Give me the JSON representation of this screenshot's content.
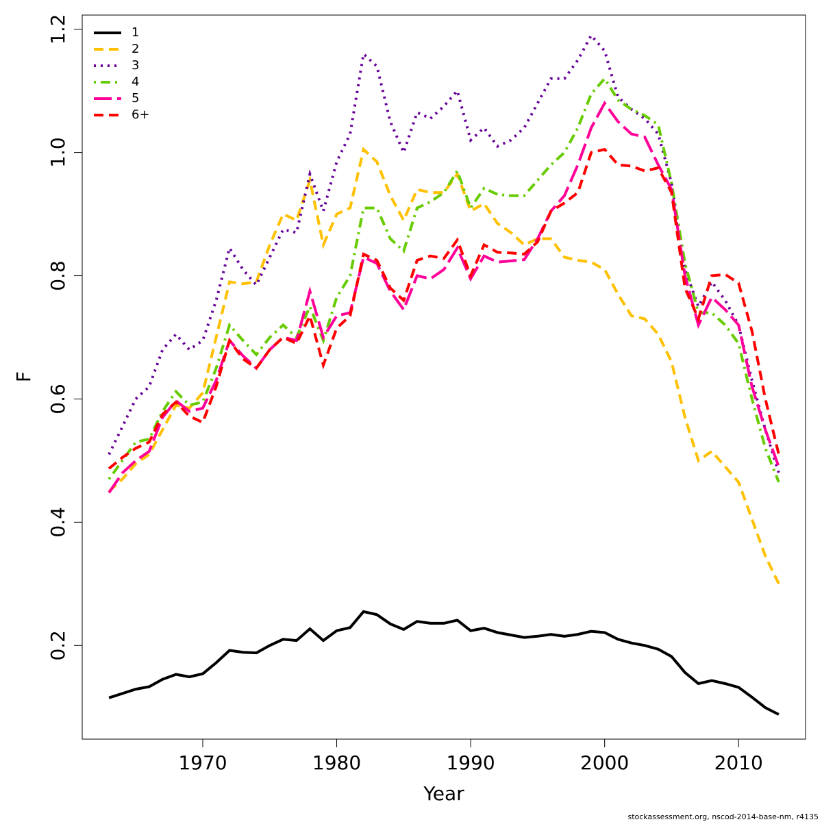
{
  "chart_data": {
    "type": "line",
    "x_label": "Year",
    "y_label": "F",
    "footnote": "stockassessment.org, nscod-2014-base-nm, r4135",
    "x": [
      1963,
      1964,
      1965,
      1966,
      1967,
      1968,
      1969,
      1970,
      1971,
      1972,
      1973,
      1974,
      1975,
      1976,
      1977,
      1978,
      1979,
      1980,
      1981,
      1982,
      1983,
      1984,
      1985,
      1986,
      1987,
      1988,
      1989,
      1990,
      1991,
      1992,
      1993,
      1994,
      1995,
      1996,
      1997,
      1998,
      1999,
      2000,
      2001,
      2002,
      2003,
      2004,
      2005,
      2006,
      2007,
      2008,
      2009,
      2010,
      2011,
      2012,
      2013
    ],
    "xlim": [
      1961,
      2015
    ],
    "xticks": [
      1970,
      1980,
      1990,
      2000,
      2010
    ],
    "ylim": [
      0.048,
      1.223
    ],
    "yticks": [
      0.2,
      0.4,
      0.6,
      0.8,
      {
        "value": 1,
        "label": "1.0"
      },
      1.2
    ],
    "legend": "top-left",
    "series": [
      {
        "name": "1",
        "color": "#000000",
        "linestyle": "solid",
        "values": [
          0.115,
          0.122,
          0.129,
          0.133,
          0.145,
          0.153,
          0.149,
          0.154,
          0.172,
          0.192,
          0.189,
          0.188,
          0.2,
          0.21,
          0.208,
          0.227,
          0.208,
          0.224,
          0.229,
          0.255,
          0.25,
          0.235,
          0.226,
          0.239,
          0.236,
          0.236,
          0.241,
          0.224,
          0.228,
          0.221,
          0.217,
          0.213,
          0.215,
          0.218,
          0.215,
          0.218,
          0.223,
          0.221,
          0.21,
          0.204,
          0.2,
          0.194,
          0.182,
          0.156,
          0.138,
          0.143,
          0.138,
          0.132,
          0.116,
          0.099,
          0.088
        ]
      },
      {
        "name": "2",
        "color": "#FFC000",
        "linestyle": "dashed",
        "values": [
          0.45,
          0.47,
          0.495,
          0.51,
          0.55,
          0.59,
          0.585,
          0.61,
          0.7,
          0.79,
          0.787,
          0.79,
          0.85,
          0.9,
          0.89,
          0.955,
          0.85,
          0.9,
          0.91,
          1.005,
          0.985,
          0.93,
          0.89,
          0.94,
          0.935,
          0.935,
          0.965,
          0.905,
          0.917,
          0.885,
          0.87,
          0.85,
          0.86,
          0.86,
          0.83,
          0.825,
          0.822,
          0.81,
          0.77,
          0.735,
          0.73,
          0.705,
          0.66,
          0.57,
          0.5,
          0.515,
          0.49,
          0.465,
          0.405,
          0.345,
          0.3
        ]
      },
      {
        "name": "3",
        "color": "#660099",
        "linestyle": "dotted",
        "values": [
          0.51,
          0.555,
          0.6,
          0.62,
          0.68,
          0.705,
          0.68,
          0.695,
          0.76,
          0.845,
          0.81,
          0.785,
          0.83,
          0.875,
          0.87,
          0.965,
          0.905,
          0.985,
          1.03,
          1.16,
          1.14,
          1.05,
          1.0,
          1.065,
          1.055,
          1.075,
          1.1,
          1.02,
          1.04,
          1.01,
          1.02,
          1.04,
          1.08,
          1.12,
          1.12,
          1.15,
          1.19,
          1.165,
          1.09,
          1.07,
          1.055,
          1.03,
          0.95,
          0.81,
          0.75,
          0.79,
          0.76,
          0.72,
          0.63,
          0.55,
          0.48
        ]
      },
      {
        "name": "4",
        "color": "#66CC00",
        "linestyle": "dotdash",
        "values": [
          0.47,
          0.5,
          0.53,
          0.535,
          0.58,
          0.612,
          0.59,
          0.595,
          0.65,
          0.72,
          0.695,
          0.672,
          0.7,
          0.72,
          0.7,
          0.75,
          0.695,
          0.765,
          0.8,
          0.91,
          0.91,
          0.86,
          0.84,
          0.91,
          0.92,
          0.935,
          0.97,
          0.91,
          0.942,
          0.932,
          0.93,
          0.93,
          0.955,
          0.98,
          1.0,
          1.04,
          1.095,
          1.12,
          1.085,
          1.07,
          1.06,
          1.045,
          0.95,
          0.82,
          0.74,
          0.74,
          0.72,
          0.69,
          0.6,
          0.52,
          0.465
        ]
      },
      {
        "name": "5",
        "color": "#FF0099",
        "linestyle": "longdash",
        "values": [
          0.448,
          0.48,
          0.5,
          0.515,
          0.57,
          0.597,
          0.58,
          0.585,
          0.63,
          0.695,
          0.67,
          0.65,
          0.68,
          0.7,
          0.695,
          0.775,
          0.7,
          0.735,
          0.74,
          0.83,
          0.82,
          0.775,
          0.745,
          0.8,
          0.795,
          0.81,
          0.845,
          0.795,
          0.832,
          0.822,
          0.824,
          0.826,
          0.86,
          0.905,
          0.93,
          0.98,
          1.04,
          1.08,
          1.05,
          1.03,
          1.025,
          0.98,
          0.94,
          0.8,
          0.72,
          0.765,
          0.745,
          0.72,
          0.62,
          0.55,
          0.49
        ]
      },
      {
        "name": "6+",
        "color": "#FF0000",
        "linestyle": "dashed",
        "values": [
          0.487,
          0.505,
          0.52,
          0.53,
          0.575,
          0.595,
          0.572,
          0.562,
          0.62,
          0.695,
          0.665,
          0.65,
          0.68,
          0.7,
          0.69,
          0.735,
          0.655,
          0.715,
          0.735,
          0.835,
          0.825,
          0.78,
          0.76,
          0.825,
          0.832,
          0.828,
          0.858,
          0.8,
          0.85,
          0.838,
          0.837,
          0.835,
          0.855,
          0.905,
          0.918,
          0.935,
          1.0,
          1.005,
          0.98,
          0.978,
          0.97,
          0.975,
          0.935,
          0.78,
          0.73,
          0.8,
          0.802,
          0.788,
          0.71,
          0.6,
          0.51
        ]
      }
    ]
  }
}
